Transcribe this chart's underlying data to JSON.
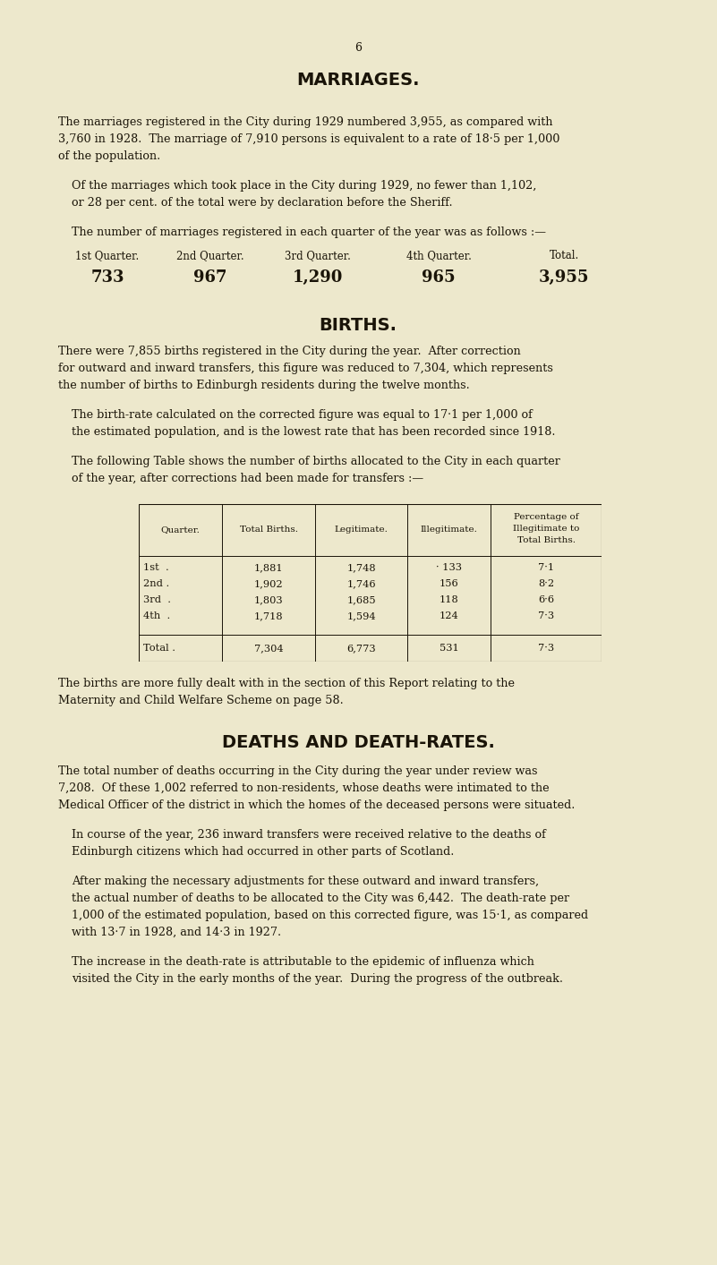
{
  "bg_color": "#ede8cc",
  "text_color": "#1a1408",
  "page_number": "6",
  "section1_title": "MARRIAGES.",
  "marriages_headers": [
    "1st Quarter.",
    "2nd Quarter.",
    "3rd Quarter.",
    "4th Quarter.",
    "Total."
  ],
  "marriages_values": [
    "733",
    "967",
    "1,290",
    "965",
    "3,955"
  ],
  "section2_title": "BIRTHS.",
  "births_col_headers": [
    "Quarter.",
    "Total Births.",
    "Legitimate.",
    "Illegitimate.",
    "Percentage of\nIllegitimate to\nTotal Births."
  ],
  "births_rows": [
    [
      "1st  .",
      "1,881",
      "1,748",
      "· 133",
      "7·1"
    ],
    [
      "2nd .",
      "1,902",
      "1,746",
      "156",
      "8·2"
    ],
    [
      "3rd  .",
      "1,803",
      "1,685",
      "118",
      "6·6"
    ],
    [
      "4th  .",
      "1,718",
      "1,594",
      "124",
      "7·3"
    ]
  ],
  "births_total_row": [
    "Total .",
    "7,304",
    "6,773",
    "531",
    "7·3"
  ],
  "section3_title": "DEATHS AND DEATH-RATES."
}
